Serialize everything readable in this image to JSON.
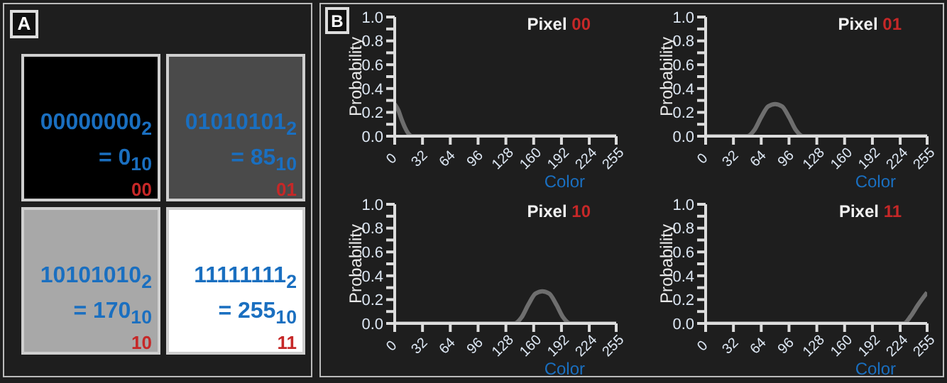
{
  "chart_data": [
    {
      "type": "other",
      "title": "A",
      "colors": [
        "#000000",
        "#4a4a4a",
        "#a8a8a8",
        "#ffffff"
      ],
      "annotations": [
        "00000000$_{2}$",
        "= 0$_{10}$",
        "00",
        "01010101$_{2}$",
        "= 85$_{10}$",
        "01",
        "10101010$_{2}$",
        "= 170$_{10}$",
        "10",
        "11111111$_{2}$",
        "= 255$_{10}$",
        "11"
      ]
    },
    {
      "type": "line",
      "title": "Pixel 00",
      "annotations": [
        "B"
      ],
      "xlabel": "Color",
      "ylabel": "Probability",
      "color": "#6e6e6e",
      "marker": "none",
      "line_style": "solid",
      "grid": false,
      "legend": false,
      "x": [
        0,
        4,
        8,
        12,
        16,
        20,
        255
      ],
      "values": [
        0.27,
        0.22,
        0.14,
        0.07,
        0.02,
        0,
        0
      ],
      "xlim": [
        0,
        255
      ],
      "xticks": [
        0,
        32,
        64,
        96,
        128,
        160,
        192,
        224,
        255
      ],
      "ylim": [
        0,
        1
      ],
      "yticks": [
        {
          "value": 0,
          "label": "0.0"
        },
        {
          "value": 0.1,
          "label": null
        },
        {
          "value": 0.2,
          "label": "0.2"
        },
        {
          "value": 0.3,
          "label": null
        },
        {
          "value": 0.4,
          "label": "0.4"
        },
        {
          "value": 0.5,
          "label": null
        },
        {
          "value": 0.6,
          "label": "0.6"
        },
        {
          "value": 0.7,
          "label": null
        },
        {
          "value": 0.8,
          "label": "0.8"
        },
        {
          "value": 0.9,
          "label": null
        },
        {
          "value": 1.0,
          "label": "1.0"
        }
      ]
    },
    {
      "type": "line",
      "title": "Pixel 01",
      "xlabel": "Color",
      "ylabel": "Probability",
      "color": "#6e6e6e",
      "marker": "none",
      "line_style": "solid",
      "grid": false,
      "legend": false,
      "x": [
        0,
        48,
        56,
        64,
        72,
        80,
        88,
        96,
        104,
        112,
        255
      ],
      "values": [
        0,
        0,
        0.05,
        0.16,
        0.25,
        0.27,
        0.25,
        0.16,
        0.05,
        0,
        0
      ],
      "xlim": [
        0,
        255
      ],
      "xticks": [
        0,
        32,
        64,
        96,
        128,
        160,
        192,
        224,
        255
      ],
      "ylim": [
        0,
        1
      ],
      "yticks": [
        {
          "value": 0,
          "label": "0.0"
        },
        {
          "value": 0.1,
          "label": null
        },
        {
          "value": 0.2,
          "label": "0.2"
        },
        {
          "value": 0.3,
          "label": null
        },
        {
          "value": 0.4,
          "label": "0.4"
        },
        {
          "value": 0.5,
          "label": null
        },
        {
          "value": 0.6,
          "label": "0.6"
        },
        {
          "value": 0.7,
          "label": null
        },
        {
          "value": 0.8,
          "label": "0.8"
        },
        {
          "value": 0.9,
          "label": null
        },
        {
          "value": 1.0,
          "label": "1.0"
        }
      ]
    },
    {
      "type": "line",
      "title": "Pixel 10",
      "xlabel": "Color",
      "ylabel": "Probability",
      "color": "#6e6e6e",
      "marker": "none",
      "line_style": "solid",
      "grid": false,
      "legend": false,
      "x": [
        0,
        138,
        146,
        154,
        162,
        170,
        178,
        186,
        194,
        202,
        255
      ],
      "values": [
        0,
        0,
        0.05,
        0.16,
        0.25,
        0.27,
        0.25,
        0.16,
        0.05,
        0,
        0
      ],
      "xlim": [
        0,
        255
      ],
      "xticks": [
        0,
        32,
        64,
        96,
        128,
        160,
        192,
        224,
        255
      ],
      "ylim": [
        0,
        1
      ],
      "yticks": [
        {
          "value": 0,
          "label": "0.0"
        },
        {
          "value": 0.1,
          "label": null
        },
        {
          "value": 0.2,
          "label": "0.2"
        },
        {
          "value": 0.3,
          "label": null
        },
        {
          "value": 0.4,
          "label": "0.4"
        },
        {
          "value": 0.5,
          "label": null
        },
        {
          "value": 0.6,
          "label": "0.6"
        },
        {
          "value": 0.7,
          "label": null
        },
        {
          "value": 0.8,
          "label": "0.8"
        },
        {
          "value": 0.9,
          "label": null
        },
        {
          "value": 1.0,
          "label": "1.0"
        }
      ]
    },
    {
      "type": "line",
      "title": "Pixel 11",
      "xlabel": "Color",
      "ylabel": "Probability",
      "color": "#6e6e6e",
      "marker": "none",
      "line_style": "solid",
      "grid": false,
      "legend": false,
      "x": [
        0,
        228,
        236,
        244,
        255
      ],
      "values": [
        0,
        0,
        0.06,
        0.15,
        0.26
      ],
      "xlim": [
        0,
        255
      ],
      "xticks": [
        0,
        32,
        64,
        96,
        128,
        160,
        192,
        224,
        255
      ],
      "ylim": [
        0,
        1
      ],
      "yticks": [
        {
          "value": 0,
          "label": "0.0"
        },
        {
          "value": 0.1,
          "label": null
        },
        {
          "value": 0.2,
          "label": "0.2"
        },
        {
          "value": 0.3,
          "label": null
        },
        {
          "value": 0.4,
          "label": "0.4"
        },
        {
          "value": 0.5,
          "label": null
        },
        {
          "value": 0.6,
          "label": "0.6"
        },
        {
          "value": 0.7,
          "label": null
        },
        {
          "value": 0.8,
          "label": "0.8"
        },
        {
          "value": 0.9,
          "label": null
        },
        {
          "value": 1.0,
          "label": "1.0"
        }
      ]
    }
  ]
}
